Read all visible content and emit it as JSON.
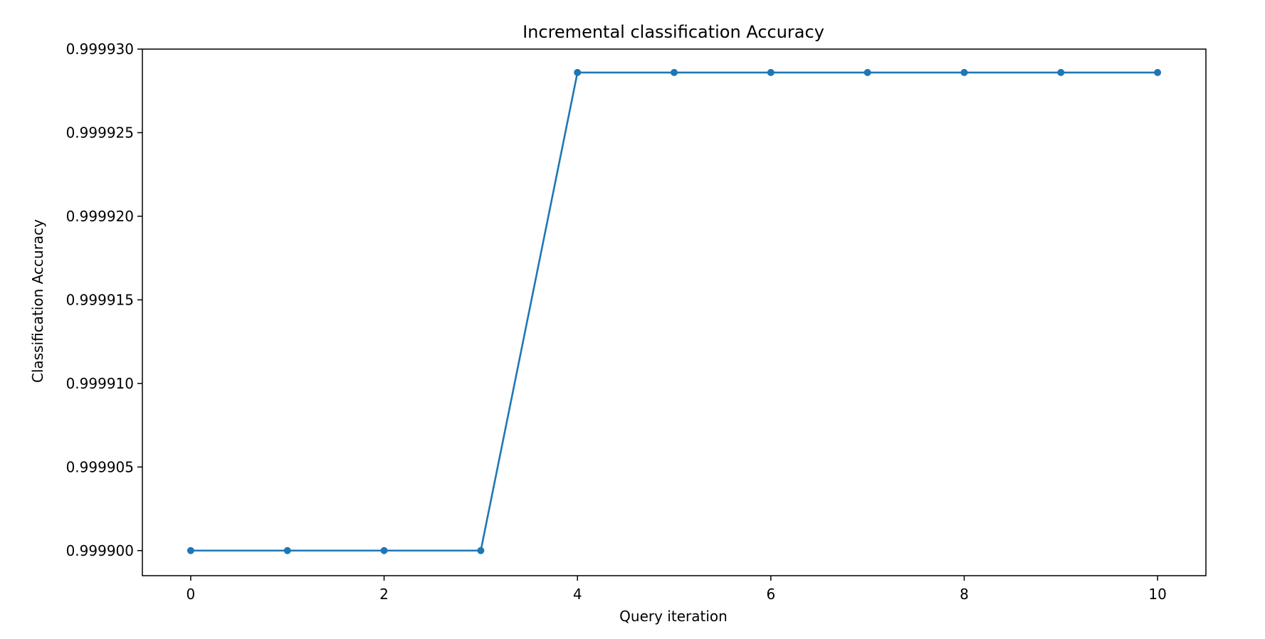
{
  "chart_data": {
    "type": "line",
    "title": "Incremental classification Accuracy",
    "xlabel": "Query iteration",
    "ylabel": "Classification Accuracy",
    "xlim": [
      -0.5,
      10.5
    ],
    "ylim": [
      0.9998985,
      0.99993
    ],
    "x_ticks": [
      0,
      2,
      4,
      6,
      8,
      10
    ],
    "x_tick_labels": [
      "0",
      "2",
      "4",
      "6",
      "8",
      "10"
    ],
    "y_ticks": [
      0.9999,
      0.999905,
      0.99991,
      0.999915,
      0.99992,
      0.999925,
      0.99993
    ],
    "y_tick_labels": [
      "0.999900",
      "0.999905",
      "0.999910",
      "0.999915",
      "0.999920",
      "0.999925",
      "0.999930"
    ],
    "grid": false,
    "series": [
      {
        "color": "#1f77b4",
        "marker": "circle",
        "x": [
          0,
          1,
          2,
          3,
          4,
          5,
          6,
          7,
          8,
          9,
          10
        ],
        "y": [
          0.9999,
          0.9999,
          0.9999,
          0.9999,
          0.9999286,
          0.9999286,
          0.9999286,
          0.9999286,
          0.9999286,
          0.9999286,
          0.9999286
        ]
      }
    ]
  }
}
